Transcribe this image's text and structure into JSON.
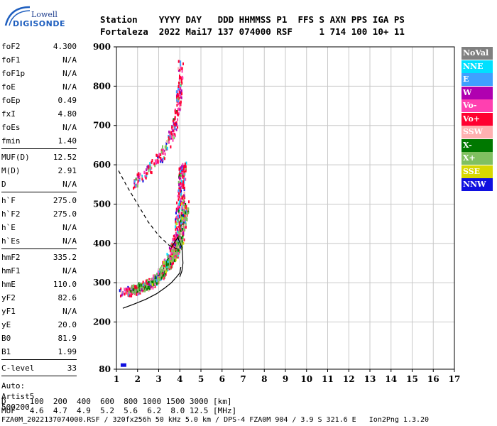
{
  "logo": {
    "line1": "Lowell",
    "line2": "DIGISONDE"
  },
  "header": {
    "line1": "Station    YYYY DAY   DDD HHMMSS P1  FFS S AXN PPS IGA PS",
    "line2": "Fortaleza  2022 Mai17 137 074000 RSF     1 714 100 10+ 11"
  },
  "params": {
    "group1": [
      {
        "name": "foF2",
        "value": "4.300"
      },
      {
        "name": "foF1",
        "value": "N/A"
      },
      {
        "name": "foF1p",
        "value": "N/A"
      },
      {
        "name": "foE",
        "value": "N/A"
      },
      {
        "name": "foEp",
        "value": "0.49"
      },
      {
        "name": "fxI",
        "value": "4.80"
      },
      {
        "name": "foEs",
        "value": "N/A"
      },
      {
        "name": "fmin",
        "value": "1.40"
      }
    ],
    "group2": [
      {
        "name": "MUF(D)",
        "value": "12.52"
      },
      {
        "name": "M(D)",
        "value": "2.91"
      },
      {
        "name": "D",
        "value": "N/A"
      }
    ],
    "group3": [
      {
        "name": "h`F",
        "value": "275.0"
      },
      {
        "name": "h`F2",
        "value": "275.0"
      },
      {
        "name": "h`E",
        "value": "N/A"
      },
      {
        "name": "h`Es",
        "value": "N/A"
      }
    ],
    "group4": [
      {
        "name": "hmF2",
        "value": "335.2"
      },
      {
        "name": "hmF1",
        "value": "N/A"
      },
      {
        "name": "hmE",
        "value": "110.0"
      },
      {
        "name": "yF2",
        "value": "82.6"
      },
      {
        "name": "yF1",
        "value": "N/A"
      },
      {
        "name": "yE",
        "value": "20.0"
      },
      {
        "name": "B0",
        "value": "81.9"
      },
      {
        "name": "B1",
        "value": "1.99"
      }
    ],
    "clevel": {
      "name": "C-level",
      "value": "33"
    },
    "auto": [
      "Auto:",
      "Artist5",
      "500200"
    ]
  },
  "legend": [
    {
      "label": "NoVal",
      "color": "#808080"
    },
    {
      "label": "NNE",
      "color": "#00e0ff"
    },
    {
      "label": "E",
      "color": "#3fa0ff"
    },
    {
      "label": "W",
      "color": "#b000b0"
    },
    {
      "label": "Vo-",
      "color": "#ff40b0"
    },
    {
      "label": "Vo+",
      "color": "#ff0030"
    },
    {
      "label": "SSW",
      "color": "#ffb0b0"
    },
    {
      "label": "X-",
      "color": "#007800"
    },
    {
      "label": "X+",
      "color": "#80c060"
    },
    {
      "label": "SSE",
      "color": "#d8d800"
    },
    {
      "label": "NNW",
      "color": "#1010e0"
    }
  ],
  "bottom": {
    "line1": "D     100  200  400  600  800 1000 1500 3000 [km]",
    "line2": "MUF   4.6  4.7  4.9  5.2  5.6  6.2  8.0 12.5 [MHz]",
    "line3": "FZA0M_2022137074000.RSF / 320fx256h 50 kHz 5.0 km / DPS-4 FZA0M 904 / 3.9 S 321.6 E   Ion2Png 1.3.20"
  },
  "chart_data": {
    "type": "scatter",
    "xlim": [
      1,
      17
    ],
    "ylim": [
      80,
      900
    ],
    "xticks": [
      1,
      2,
      3,
      4,
      5,
      6,
      7,
      8,
      9,
      10,
      11,
      12,
      13,
      14,
      15,
      16,
      17
    ],
    "yticks": [
      80,
      200,
      300,
      400,
      500,
      600,
      700,
      800,
      900
    ],
    "grid": true,
    "profile_dashed": [
      [
        1.1,
        585
      ],
      [
        1.5,
        545
      ],
      [
        2.0,
        500
      ],
      [
        2.5,
        455
      ],
      [
        3.0,
        420
      ],
      [
        3.5,
        395
      ],
      [
        3.9,
        385
      ]
    ],
    "profile_solid": [
      [
        3.6,
        390
      ],
      [
        3.9,
        415
      ],
      [
        4.1,
        390
      ],
      [
        4.15,
        350
      ],
      [
        4.1,
        330
      ],
      [
        4.0,
        315
      ]
    ],
    "trace_lower": [
      [
        1.3,
        235
      ],
      [
        1.8,
        245
      ],
      [
        2.4,
        258
      ],
      [
        2.9,
        272
      ],
      [
        3.3,
        287
      ],
      [
        3.6,
        300
      ],
      [
        3.85,
        315
      ],
      [
        4.0,
        325
      ],
      [
        4.05,
        340
      ]
    ],
    "ordinary_trace": [
      [
        1.3,
        275
      ],
      [
        1.7,
        278
      ],
      [
        2.2,
        285
      ],
      [
        2.7,
        298
      ],
      [
        3.1,
        318
      ],
      [
        3.4,
        345
      ],
      [
        3.6,
        368
      ],
      [
        3.8,
        395
      ],
      [
        3.95,
        440
      ],
      [
        4.05,
        510
      ],
      [
        4.1,
        560
      ],
      [
        4.15,
        600
      ]
    ],
    "extraordinary_trace": [
      [
        1.8,
        280
      ],
      [
        2.3,
        290
      ],
      [
        2.8,
        305
      ],
      [
        3.2,
        330
      ],
      [
        3.5,
        350
      ],
      [
        3.8,
        370
      ],
      [
        4.0,
        400
      ],
      [
        4.1,
        430
      ],
      [
        4.2,
        460
      ],
      [
        4.3,
        500
      ]
    ],
    "upper_trace": [
      [
        1.9,
        550
      ],
      [
        2.3,
        575
      ],
      [
        2.7,
        600
      ],
      [
        3.1,
        620
      ],
      [
        3.4,
        650
      ],
      [
        3.7,
        690
      ],
      [
        3.85,
        720
      ],
      [
        3.95,
        760
      ],
      [
        4.0,
        800
      ],
      [
        4.05,
        860
      ]
    ]
  }
}
